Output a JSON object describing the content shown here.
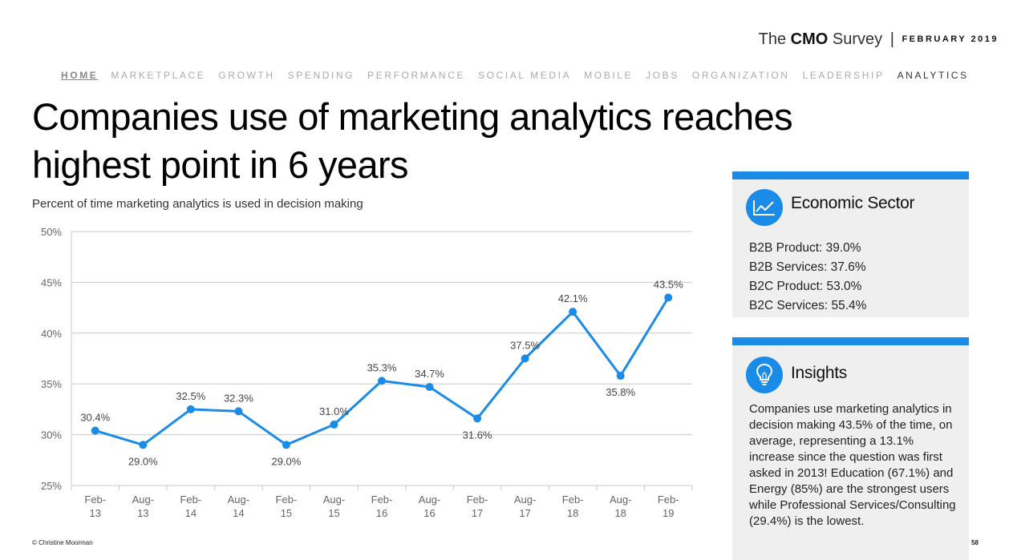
{
  "brand": {
    "the": "The",
    "cmo": "CMO",
    "survey": "Survey",
    "separator": "|",
    "month": "FEBRUARY 2019"
  },
  "nav": {
    "items": [
      {
        "label": "HOME"
      },
      {
        "label": "MARKETPLACE"
      },
      {
        "label": "GROWTH"
      },
      {
        "label": "SPENDING"
      },
      {
        "label": "PERFORMANCE"
      },
      {
        "label": "SOCIAL MEDIA"
      },
      {
        "label": "MOBILE"
      },
      {
        "label": "JOBS"
      },
      {
        "label": "ORGANIZATION"
      },
      {
        "label": "LEADERSHIP"
      },
      {
        "label": "ANALYTICS"
      }
    ]
  },
  "page": {
    "title": "Companies use of marketing analytics reaches highest point in 6 years",
    "subtitle": "Percent of time marketing analytics is used in decision making"
  },
  "chart_data": {
    "type": "line",
    "title": "Percent of time marketing analytics is used in decision making",
    "x": [
      "Feb-13",
      "Aug-13",
      "Feb-14",
      "Aug-14",
      "Feb-15",
      "Aug-15",
      "Feb-16",
      "Aug-16",
      "Feb-17",
      "Aug-17",
      "Feb-18",
      "Aug-18",
      "Feb-19"
    ],
    "x_tick_labels": [
      [
        "Feb-",
        "13"
      ],
      [
        "Aug-",
        "13"
      ],
      [
        "Feb-",
        "14"
      ],
      [
        "Aug-",
        "14"
      ],
      [
        "Feb-",
        "15"
      ],
      [
        "Aug-",
        "15"
      ],
      [
        "Feb-",
        "16"
      ],
      [
        "Aug-",
        "16"
      ],
      [
        "Feb-",
        "17"
      ],
      [
        "Aug-",
        "17"
      ],
      [
        "Feb-",
        "18"
      ],
      [
        "Aug-",
        "18"
      ],
      [
        "Feb-",
        "19"
      ]
    ],
    "series": [
      {
        "values": [
          30.4,
          29.0,
          32.5,
          32.3,
          29.0,
          31.0,
          35.3,
          34.7,
          31.6,
          37.5,
          42.1,
          35.8,
          43.5
        ],
        "labels": [
          "30.4%",
          "29.0%",
          "32.5%",
          "32.3%",
          "29.0%",
          "31.0%",
          "35.3%",
          "34.7%",
          "31.6%",
          "37.5%",
          "42.1%",
          "35.8%",
          "43.5%"
        ],
        "label_position": [
          "above",
          "below",
          "above",
          "above",
          "below",
          "above",
          "above",
          "above",
          "below",
          "above",
          "above",
          "below",
          "above"
        ],
        "color": "#1b8be8"
      }
    ],
    "ylim": [
      25,
      50
    ],
    "yticks": [
      25,
      30,
      35,
      40,
      45,
      50
    ],
    "ytick_labels": [
      "25%",
      "30%",
      "35%",
      "40%",
      "45%",
      "50%"
    ],
    "grid": true,
    "xlabel": "",
    "ylabel": ""
  },
  "panels": {
    "sector": {
      "heading": "Economic Sector",
      "icon": "line-chart-icon",
      "items": [
        "B2B Product: 39.0%",
        "B2B Services: 37.6%",
        "B2C Product: 53.0%",
        "B2C Services: 55.4%"
      ]
    },
    "insights": {
      "heading": "Insights",
      "icon": "lightbulb-icon",
      "text": "Companies use marketing analytics in decision making 43.5% of the time, on average, representing a 13.1% increase since the question was first asked in 2013! Education (67.1%) and Energy (85%) are the strongest users while Professional Services/Consulting (29.4%) is the lowest."
    }
  },
  "footer": {
    "credit": "© Christine Moorman",
    "page_number": "58"
  },
  "colors": {
    "accent": "#1b8be8",
    "panel_bg": "#efefef",
    "grid": "#c8c8c8"
  }
}
